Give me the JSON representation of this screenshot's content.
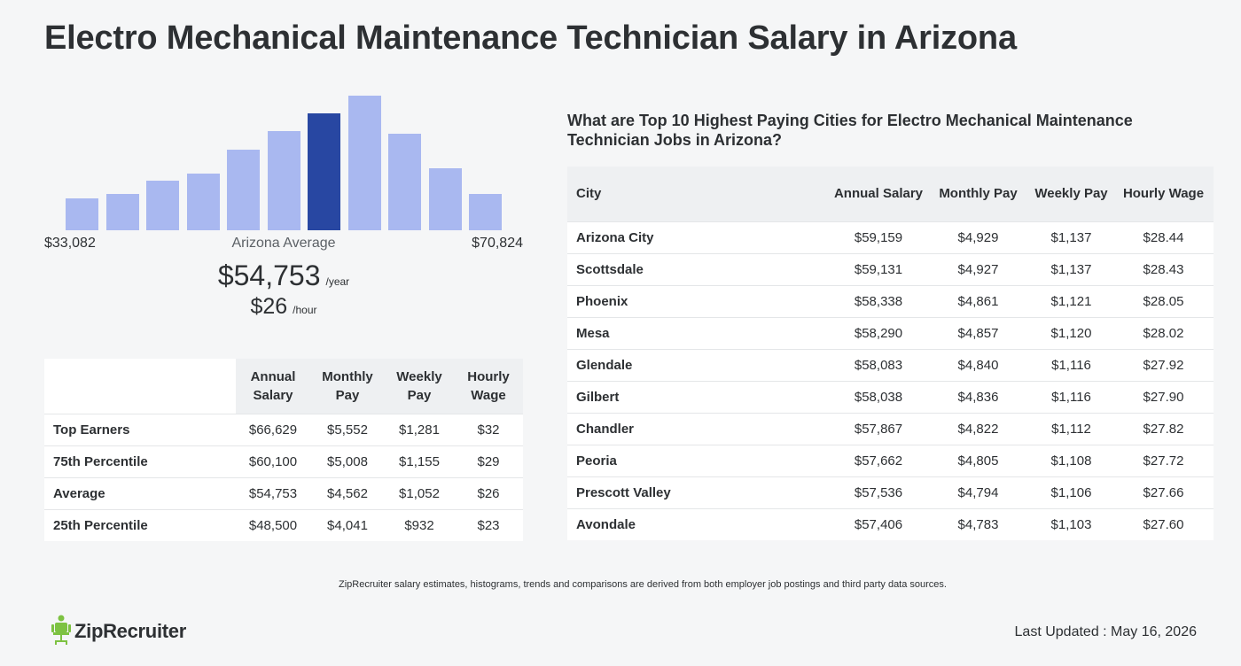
{
  "page": {
    "title": "Electro Mechanical Maintenance Technician Salary in Arizona"
  },
  "histogram": {
    "min_label": "$33,082",
    "max_label": "$70,824",
    "avg_label": "Arizona Average",
    "bar_heights_fraction": [
      0.24,
      0.27,
      0.37,
      0.42,
      0.6,
      0.74,
      0.87,
      1.0,
      0.72,
      0.46,
      0.27
    ],
    "active_index": 6,
    "bar_color": "#a9b8f0",
    "active_color": "#2847a2"
  },
  "summary": {
    "annual": "$54,753",
    "annual_unit": "/year",
    "hourly": "$26",
    "hourly_unit": "/hour"
  },
  "percentile_table": {
    "headers": [
      "Annual Salary",
      "Monthly Pay",
      "Weekly Pay",
      "Hourly Wage"
    ],
    "rows": [
      {
        "label": "Top Earners",
        "values": [
          "$66,629",
          "$5,552",
          "$1,281",
          "$32"
        ]
      },
      {
        "label": "75th Percentile",
        "values": [
          "$60,100",
          "$5,008",
          "$1,155",
          "$29"
        ]
      },
      {
        "label": "Average",
        "values": [
          "$54,753",
          "$4,562",
          "$1,052",
          "$26"
        ]
      },
      {
        "label": "25th Percentile",
        "values": [
          "$48,500",
          "$4,041",
          "$932",
          "$23"
        ]
      }
    ]
  },
  "cities": {
    "heading": "What are Top 10 Highest Paying Cities for Electro Mechanical Maintenance Technician Jobs in Arizona?",
    "headers": [
      "City",
      "Annual Salary",
      "Monthly Pay",
      "Weekly Pay",
      "Hourly Wage"
    ],
    "rows": [
      {
        "city": "Arizona City",
        "values": [
          "$59,159",
          "$4,929",
          "$1,137",
          "$28.44"
        ]
      },
      {
        "city": "Scottsdale",
        "values": [
          "$59,131",
          "$4,927",
          "$1,137",
          "$28.43"
        ]
      },
      {
        "city": "Phoenix",
        "values": [
          "$58,338",
          "$4,861",
          "$1,121",
          "$28.05"
        ]
      },
      {
        "city": "Mesa",
        "values": [
          "$58,290",
          "$4,857",
          "$1,120",
          "$28.02"
        ]
      },
      {
        "city": "Glendale",
        "values": [
          "$58,083",
          "$4,840",
          "$1,116",
          "$27.92"
        ]
      },
      {
        "city": "Gilbert",
        "values": [
          "$58,038",
          "$4,836",
          "$1,116",
          "$27.90"
        ]
      },
      {
        "city": "Chandler",
        "values": [
          "$57,867",
          "$4,822",
          "$1,112",
          "$27.82"
        ]
      },
      {
        "city": "Peoria",
        "values": [
          "$57,662",
          "$4,805",
          "$1,108",
          "$27.72"
        ]
      },
      {
        "city": "Prescott Valley",
        "values": [
          "$57,536",
          "$4,794",
          "$1,106",
          "$27.66"
        ]
      },
      {
        "city": "Avondale",
        "values": [
          "$57,406",
          "$4,783",
          "$1,103",
          "$27.60"
        ]
      }
    ]
  },
  "footer": {
    "note": "ZipRecruiter salary estimates, histograms, trends and comparisons are derived from both employer job postings and third party data sources.",
    "logo_text": "ZipRecruiter",
    "logo_icon": "chair-person-icon",
    "logo_color": "#7dc242",
    "last_updated": "Last Updated : May 16, 2026"
  }
}
